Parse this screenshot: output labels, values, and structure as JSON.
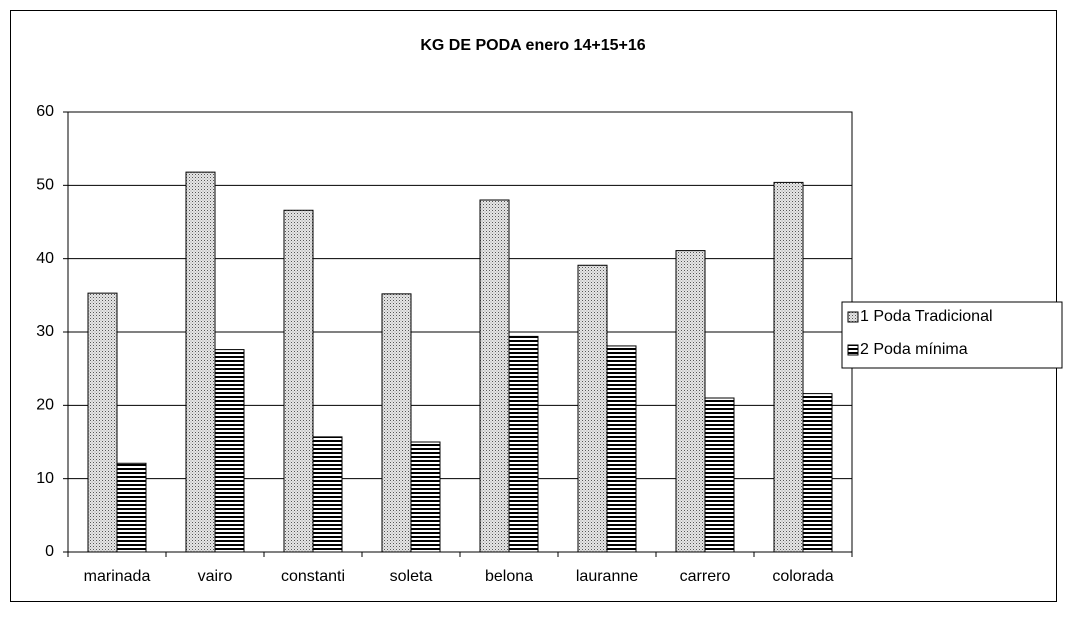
{
  "chart_data": {
    "type": "bar",
    "title": "KG DE PODA enero 14+15+16",
    "categories": [
      "marinada",
      "vairo",
      "constanti",
      "soleta",
      "belona",
      "lauranne",
      "carrero",
      "colorada"
    ],
    "series": [
      {
        "name": "1 Poda Tradicional",
        "color": "#ffffff",
        "pattern": "dots",
        "values": [
          35.3,
          51.8,
          46.6,
          35.2,
          48.0,
          39.1,
          41.1,
          50.4
        ]
      },
      {
        "name": "2 Poda mínima",
        "color": "#ffffff",
        "pattern": "hlines",
        "values": [
          12.1,
          27.6,
          15.7,
          15.0,
          29.4,
          28.1,
          21.0,
          21.6
        ]
      }
    ],
    "ylim": [
      0,
      60
    ],
    "yticks": [
      0,
      10,
      20,
      30,
      40,
      50,
      60
    ],
    "grid": true,
    "legend": "right"
  }
}
